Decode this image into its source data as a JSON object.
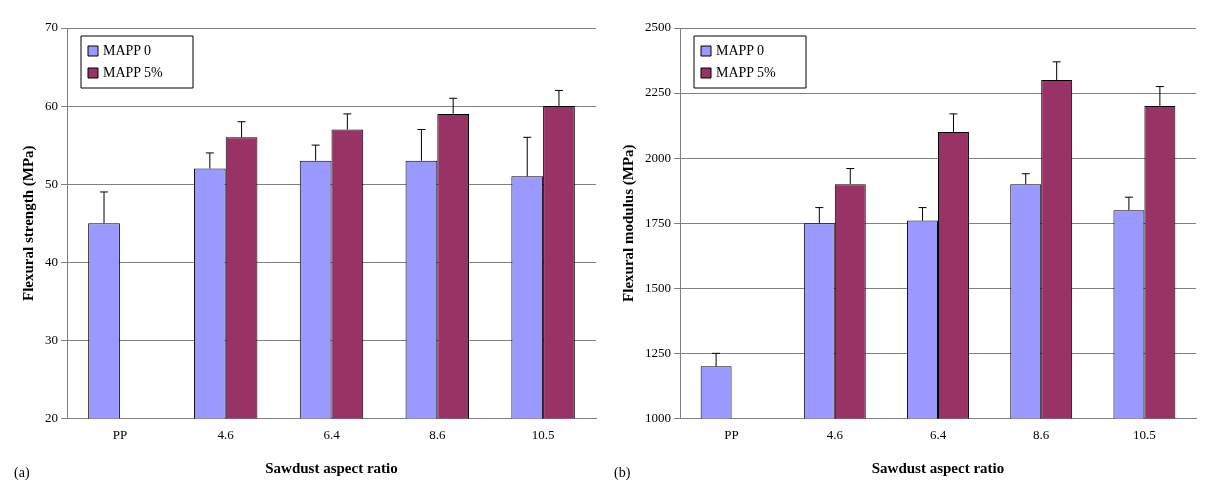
{
  "chart_data": [
    {
      "type": "bar",
      "xlabel": "Sawdust aspect ratio",
      "ylabel": "Flexural strength (MPa)",
      "categories": [
        "PP",
        "4.6",
        "6.4",
        "8.6",
        "10.5"
      ],
      "series": [
        {
          "name": "MAPP 0",
          "color": "#9999ff",
          "values": [
            45,
            52,
            53,
            53,
            51
          ],
          "errors": [
            [
              45,
              49
            ],
            [
              52,
              54
            ],
            [
              53,
              55
            ],
            [
              53,
              57
            ],
            [
              51,
              56
            ]
          ]
        },
        {
          "name": "MAPP 5%",
          "color": "#993366",
          "values": [
            null,
            56,
            57,
            59,
            60
          ],
          "errors": [
            null,
            [
              56,
              58
            ],
            [
              57,
              59
            ],
            [
              59,
              61
            ],
            [
              60,
              62
            ]
          ]
        }
      ],
      "ylim": [
        20,
        70
      ],
      "yticks": [
        20,
        30,
        40,
        50,
        60,
        70
      ],
      "grid": "y",
      "legend": "top left",
      "annotations": [
        "(a)"
      ]
    },
    {
      "type": "bar",
      "xlabel": "Sawdust aspect ratio",
      "ylabel": "Flexural modulus (MPa)",
      "categories": [
        "PP",
        "4.6",
        "6.4",
        "8.6",
        "10.5"
      ],
      "series": [
        {
          "name": "MAPP 0",
          "color": "#9999ff",
          "values": [
            1200,
            1750,
            1760,
            1900,
            1800
          ],
          "errors": [
            [
              1200,
              1250
            ],
            [
              1750,
              1810
            ],
            [
              1760,
              1810
            ],
            [
              1900,
              1940
            ],
            [
              1800,
              1850
            ]
          ]
        },
        {
          "name": "MAPP 5%",
          "color": "#993366",
          "values": [
            null,
            1900,
            2100,
            2300,
            2200
          ],
          "errors": [
            null,
            [
              1900,
              1960
            ],
            [
              2100,
              2170
            ],
            [
              2300,
              2370
            ],
            [
              2200,
              2275
            ]
          ]
        }
      ],
      "ylim": [
        1000,
        2500
      ],
      "yticks": [
        1000,
        1250,
        1500,
        1750,
        2000,
        2250,
        2500
      ],
      "grid": "y",
      "legend": "top left",
      "annotations": [
        "(b)"
      ]
    }
  ]
}
